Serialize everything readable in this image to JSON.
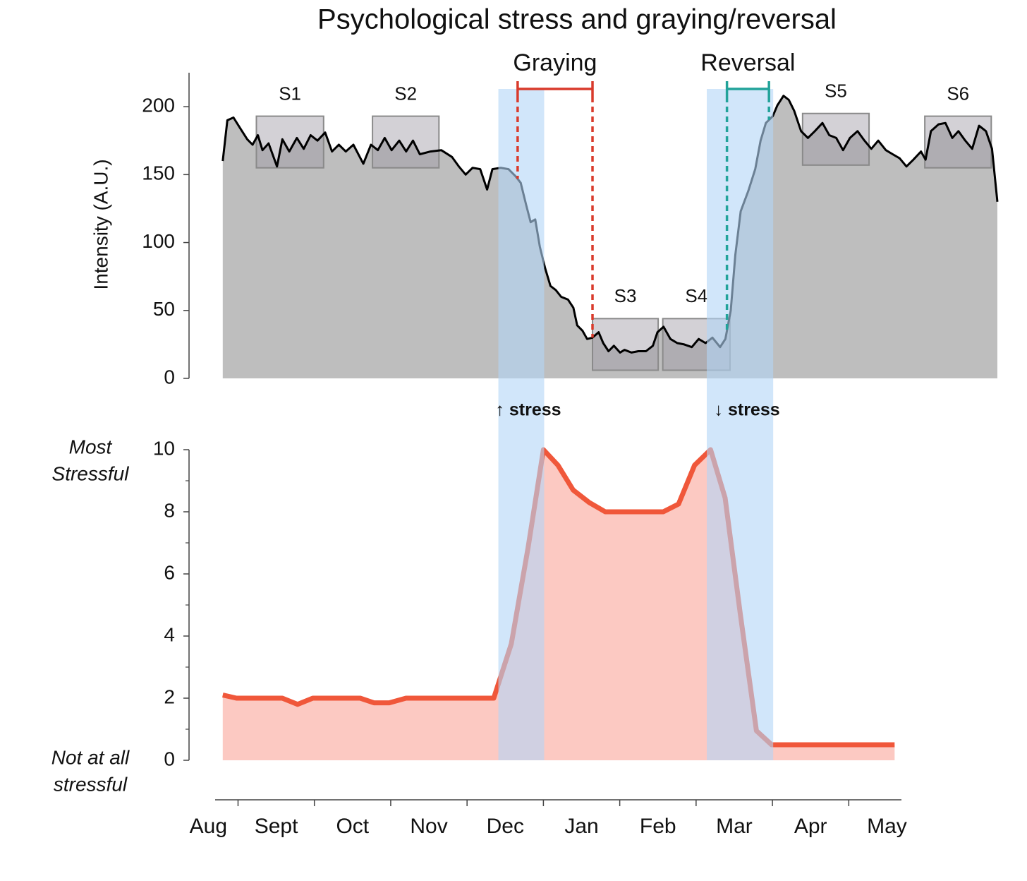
{
  "chart_data": [
    {
      "type": "area",
      "title": "Psychological stress and graying/reversal",
      "ylabel": "Intensity (A.U.)",
      "fill_color": "#bebebe",
      "line_color": "#000000",
      "xlim": [
        0.7,
        10.94
      ],
      "ylim": [
        0,
        225
      ],
      "yticks": [
        0,
        50,
        100,
        150,
        200
      ],
      "x": [
        0.8,
        0.86,
        0.94,
        1.03,
        1.12,
        1.19,
        1.26,
        1.32,
        1.4,
        1.51,
        1.58,
        1.67,
        1.77,
        1.86,
        1.95,
        2.04,
        2.14,
        2.23,
        2.32,
        2.41,
        2.51,
        2.64,
        2.74,
        2.83,
        2.92,
        3.01,
        3.11,
        3.2,
        3.29,
        3.38,
        3.52,
        3.66,
        3.8,
        3.89,
        3.98,
        4.07,
        4.17,
        4.26,
        4.33,
        4.44,
        4.54,
        4.63,
        4.7,
        4.77,
        4.83,
        4.89,
        4.95,
        5.02,
        5.09,
        5.16,
        5.23,
        5.32,
        5.39,
        5.44,
        5.51,
        5.57,
        5.64,
        5.72,
        5.78,
        5.85,
        5.92,
        6.0,
        6.06,
        6.15,
        6.24,
        6.34,
        6.43,
        6.49,
        6.57,
        6.66,
        6.75,
        6.84,
        6.94,
        7.03,
        7.12,
        7.21,
        7.31,
        7.38,
        7.45,
        7.51,
        7.58,
        7.68,
        7.77,
        7.84,
        7.91,
        8.0,
        8.06,
        8.14,
        8.21,
        8.28,
        8.37,
        8.46,
        8.55,
        8.65,
        8.74,
        8.83,
        8.92,
        9.01,
        9.11,
        9.2,
        9.29,
        9.38,
        9.48,
        9.57,
        9.66,
        9.75,
        9.84,
        9.94,
        10.0,
        10.07,
        10.17,
        10.26,
        10.35,
        10.43,
        10.52,
        10.61,
        10.7,
        10.79,
        10.87,
        10.94
      ],
      "values": [
        160,
        190,
        192,
        184,
        176,
        172,
        179,
        168,
        173,
        156,
        176,
        167,
        177,
        169,
        179,
        175,
        181,
        167,
        172,
        167,
        172,
        158,
        172,
        168,
        177,
        168,
        175,
        167,
        175,
        165,
        167,
        168,
        163,
        156,
        150,
        155,
        154,
        139,
        154,
        155,
        154,
        149,
        144,
        128,
        115,
        117,
        97,
        81,
        68,
        65,
        60,
        58,
        52,
        39,
        35,
        29,
        30,
        34,
        26,
        20,
        24,
        19,
        21,
        19,
        20,
        20,
        24,
        34,
        38,
        29,
        26,
        25,
        23,
        29,
        26,
        30,
        23,
        29,
        50,
        91,
        123,
        138,
        154,
        175,
        188,
        193,
        201,
        208,
        205,
        197,
        182,
        177,
        182,
        188,
        179,
        177,
        168,
        177,
        182,
        175,
        169,
        175,
        168,
        165,
        162,
        156,
        161,
        167,
        161,
        182,
        187,
        188,
        177,
        182,
        175,
        169,
        186,
        182,
        169,
        130
      ],
      "samples": [
        {
          "label": "S1",
          "x": [
            1.24,
            2.12
          ],
          "y": [
            155,
            193
          ]
        },
        {
          "label": "S2",
          "x": [
            2.76,
            3.63
          ],
          "y": [
            155,
            193
          ]
        },
        {
          "label": "S3",
          "x": [
            5.64,
            6.5
          ],
          "y": [
            6,
            44
          ]
        },
        {
          "label": "S4",
          "x": [
            6.56,
            7.44
          ],
          "y": [
            6,
            44
          ]
        },
        {
          "label": "S5",
          "x": [
            8.39,
            9.26
          ],
          "y": [
            157,
            195
          ]
        },
        {
          "label": "S6",
          "x": [
            9.99,
            10.86
          ],
          "y": [
            155,
            193
          ]
        }
      ],
      "sample_color": "#9e9aa3",
      "brackets": [
        {
          "label": "Graying",
          "color": "#d93a2b",
          "x": [
            4.66,
            5.64
          ]
        },
        {
          "label": "Reversal",
          "color": "#22a39a",
          "x": [
            7.4,
            7.95
          ]
        }
      ]
    },
    {
      "type": "area",
      "ymax_label": [
        "Most",
        "Stressful"
      ],
      "ymin_label": [
        "Not at all",
        "stressful"
      ],
      "fill_color": "#fcc9c2",
      "line_color": "#f0573a",
      "xlim": [
        0.7,
        9.69
      ],
      "ylim": [
        0,
        10
      ],
      "yticks": [
        0,
        2,
        4,
        6,
        8,
        10
      ],
      "categories": [
        "Aug",
        "Sept",
        "Oct",
        "Nov",
        "Dec",
        "Jan",
        "Feb",
        "Mar",
        "Apr",
        "May"
      ],
      "x": [
        0.8,
        0.98,
        1.58,
        1.78,
        1.98,
        2.6,
        2.78,
        2.98,
        3.2,
        4.35,
        4.58,
        4.8,
        5.0,
        5.19,
        5.39,
        5.6,
        5.81,
        6.57,
        6.77,
        6.98,
        7.19,
        7.38,
        7.58,
        7.79,
        7.99,
        9.6
      ],
      "values": [
        2.1,
        2.0,
        2.0,
        1.8,
        2.0,
        2.0,
        1.85,
        1.85,
        2.0,
        2.0,
        3.75,
        6.85,
        10.0,
        9.5,
        8.7,
        8.3,
        8.0,
        8.0,
        8.25,
        9.5,
        10.0,
        8.45,
        4.7,
        0.95,
        0.5,
        0.5
      ],
      "bands": [
        {
          "label": "↑ stress",
          "x": [
            4.41,
            5.01
          ]
        },
        {
          "label": "↓ stress",
          "x": [
            7.14,
            8.01
          ]
        }
      ],
      "band_color": "#b3d5f7",
      "band_label_color": "#d93a2b"
    }
  ]
}
